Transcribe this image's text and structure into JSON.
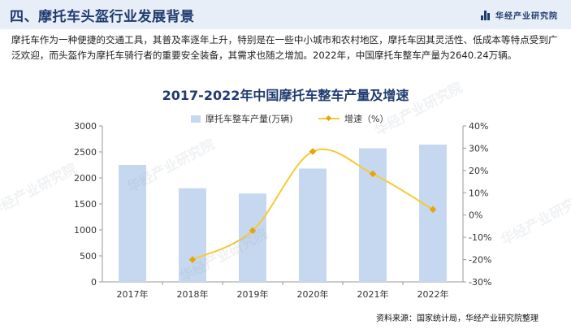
{
  "header": {
    "title": "四、摩托车头盔行业发展背景",
    "brand": "华经产业研究院"
  },
  "intro_text": "摩托车作为一种便捷的交通工具，其普及率逐年上升，特别是在一些中小城市和农村地区，摩托车因其灵活性、低成本等特点受到广泛欢迎，而头盔作为摩托车骑行者的重要安全装备，其需求也随之增加。2022年，中国摩托车整车产量为2640.24万辆。",
  "chart_data": {
    "type": "bar+line",
    "title": "2017-2022年中国摩托车整车产量及增速",
    "categories": [
      "2017年",
      "2018年",
      "2019年",
      "2020年",
      "2021年",
      "2022年"
    ],
    "series": [
      {
        "name": "摩托车整车产量(万辆)",
        "type": "bar",
        "axis": "left",
        "values": [
          2250,
          1800,
          1700,
          2180,
          2570,
          2640.24
        ]
      },
      {
        "name": "增速（%）",
        "type": "line",
        "axis": "right",
        "values": [
          null,
          -20,
          -7,
          28.5,
          18.5,
          2.5
        ]
      }
    ],
    "y_left": {
      "min": 0,
      "max": 3000,
      "ticks": [
        0,
        500,
        1000,
        1500,
        2000,
        2500,
        3000
      ]
    },
    "y_right": {
      "min": -30,
      "max": 40,
      "ticks": [
        -30,
        -20,
        -10,
        0,
        10,
        20,
        30,
        40
      ],
      "tick_suffix": "%"
    },
    "legend_position": "top",
    "colors": {
      "bar": "#c5d8f0",
      "line": "#f7c933",
      "marker": "#e8a20c",
      "title": "#1f3b6f"
    },
    "grid": false
  },
  "source_text": "资料来源：国家统计局，华经产业研究院整理",
  "watermark_text": "华经产业研究院"
}
